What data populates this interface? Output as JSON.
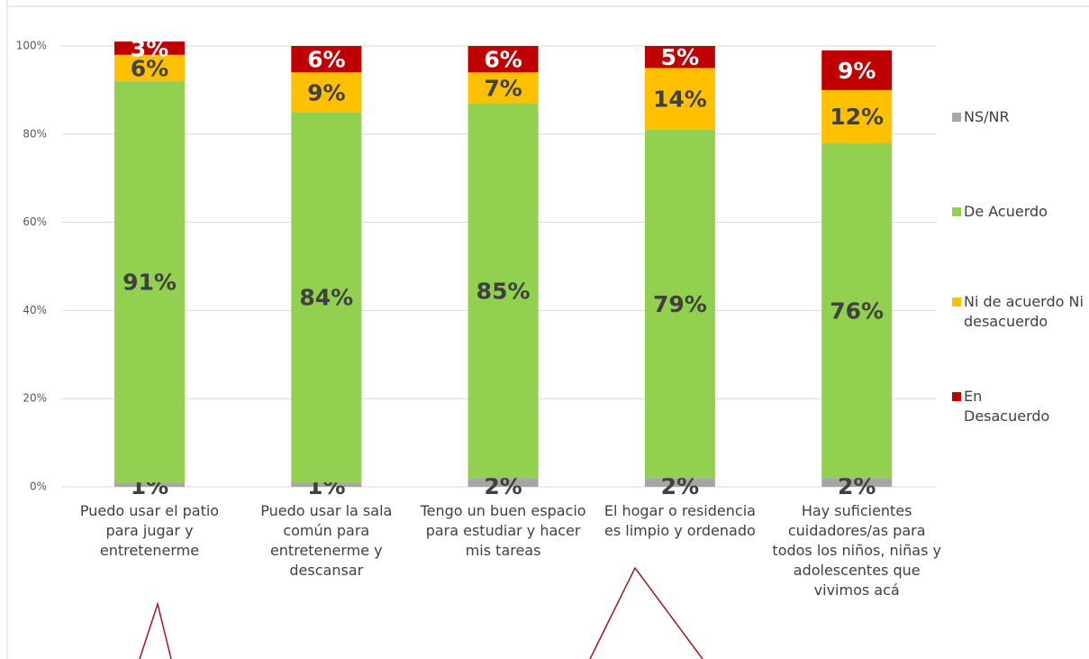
{
  "chart_data": {
    "type": "stacked_bar",
    "categories": [
      "Puedo usar el patio para jugar y entretenerme",
      "Puedo usar la sala común para entretenerme y descansar",
      "Tengo un buen espacio para estudiar y hacer mis tareas",
      "El hogar o residencia es limpio y ordenado",
      "Hay suficientes cuidadores/as para todos los niños, niñas y adolescentes que vivimos acá"
    ],
    "series": [
      {
        "name": "NS/NR",
        "color": "#a6a6a6",
        "values": [
          1,
          1,
          2,
          2,
          2
        ],
        "value_labels": [
          "1%",
          "1%",
          "2%",
          "2%",
          "2%"
        ]
      },
      {
        "name": "De Acuerdo",
        "color": "#92d050",
        "values": [
          91,
          84,
          85,
          79,
          76
        ],
        "value_labels": [
          "91%",
          "84%",
          "85%",
          "79%",
          "76%"
        ]
      },
      {
        "name": "Ni de acuerdo Ni desacuerdo",
        "color": "#ffc000",
        "values": [
          6,
          9,
          7,
          14,
          12
        ],
        "value_labels": [
          "6%",
          "9%",
          "7%",
          "14%",
          "12%"
        ]
      },
      {
        "name": "En Desacuerdo",
        "color": "#c00000",
        "values": [
          3,
          6,
          6,
          5,
          9
        ],
        "value_labels": [
          "3%",
          "6%",
          "6%",
          "5%",
          "9%"
        ]
      }
    ],
    "ylim": [
      0,
      100
    ],
    "yticks": [
      {
        "value": 0,
        "label": "0%"
      },
      {
        "value": 20,
        "label": "20%"
      },
      {
        "value": 40,
        "label": "40%"
      },
      {
        "value": 60,
        "label": "60%"
      },
      {
        "value": 80,
        "label": "80%"
      },
      {
        "value": 100,
        "label": "100%"
      }
    ],
    "grid": true,
    "legend": "right"
  }
}
